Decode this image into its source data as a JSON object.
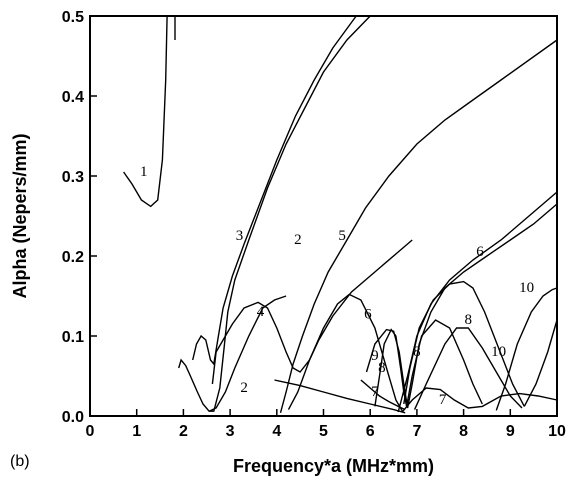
{
  "chart_data": {
    "type": "line",
    "panel_label": "(b)",
    "xlabel": "Frequency*a  (MHz*mm)",
    "ylabel": "Alpha  (Nepers/mm)",
    "xlim": [
      0,
      10
    ],
    "ylim": [
      0,
      0.5
    ],
    "xticks": [
      "0",
      "1",
      "2",
      "3",
      "4",
      "5",
      "6",
      "7",
      "8",
      "9",
      "10"
    ],
    "yticks": [
      "0.0",
      "0.1",
      "0.2",
      "0.3",
      "0.4",
      "0.5"
    ],
    "grid": false,
    "series": [
      {
        "label": "1",
        "label_at": [
          1.15,
          0.3
        ],
        "points": [
          [
            0.72,
            0.305
          ],
          [
            0.9,
            0.29
          ],
          [
            1.1,
            0.27
          ],
          [
            1.3,
            0.262
          ],
          [
            1.45,
            0.27
          ],
          [
            1.55,
            0.32
          ],
          [
            1.62,
            0.42
          ],
          [
            1.65,
            0.5
          ]
        ]
      },
      {
        "label": "1",
        "label_at": [
          1.15,
          0.3
        ],
        "points": [
          [
            1.82,
            0.5
          ],
          [
            1.82,
            0.47
          ]
        ]
      },
      {
        "label": "2",
        "label_at": [
          4.45,
          0.215
        ],
        "points": [
          [
            1.9,
            0.06
          ],
          [
            1.95,
            0.07
          ],
          [
            2.05,
            0.063
          ],
          [
            2.15,
            0.05
          ],
          [
            2.3,
            0.03
          ],
          [
            2.42,
            0.015
          ],
          [
            2.55,
            0.006
          ],
          [
            2.65,
            0.006
          ],
          [
            2.78,
            0.035
          ],
          [
            2.88,
            0.09
          ],
          [
            2.95,
            0.13
          ],
          [
            3.1,
            0.17
          ],
          [
            3.4,
            0.22
          ],
          [
            3.8,
            0.285
          ],
          [
            4.2,
            0.34
          ],
          [
            4.6,
            0.385
          ],
          [
            5.0,
            0.43
          ],
          [
            5.5,
            0.47
          ],
          [
            6.0,
            0.5
          ]
        ]
      },
      {
        "label": "2",
        "label_at": [
          3.3,
          0.03
        ],
        "points": [
          [
            2.55,
            0.006
          ],
          [
            2.7,
            0.01
          ],
          [
            2.9,
            0.03
          ],
          [
            3.1,
            0.06
          ],
          [
            3.4,
            0.1
          ],
          [
            3.7,
            0.135
          ],
          [
            3.95,
            0.145
          ],
          [
            4.2,
            0.15
          ]
        ]
      },
      {
        "label": "3",
        "label_at": [
          3.2,
          0.22
        ],
        "points": [
          [
            2.2,
            0.07
          ],
          [
            2.28,
            0.09
          ],
          [
            2.38,
            0.1
          ],
          [
            2.48,
            0.095
          ],
          [
            2.58,
            0.07
          ],
          [
            2.65,
            0.065
          ],
          [
            2.75,
            0.1
          ],
          [
            2.85,
            0.135
          ],
          [
            3.05,
            0.175
          ],
          [
            3.3,
            0.215
          ],
          [
            3.6,
            0.26
          ],
          [
            4.0,
            0.32
          ],
          [
            4.4,
            0.375
          ],
          [
            4.8,
            0.42
          ],
          [
            5.2,
            0.46
          ],
          [
            5.7,
            0.5
          ]
        ]
      },
      {
        "label": "4",
        "label_at": [
          3.65,
          0.125
        ],
        "points": [
          [
            2.62,
            0.04
          ],
          [
            2.7,
            0.08
          ],
          [
            2.85,
            0.095
          ],
          [
            3.05,
            0.115
          ],
          [
            3.3,
            0.135
          ],
          [
            3.6,
            0.142
          ],
          [
            3.8,
            0.135
          ],
          [
            4.0,
            0.11
          ],
          [
            4.2,
            0.08
          ],
          [
            4.35,
            0.06
          ],
          [
            4.5,
            0.055
          ],
          [
            4.7,
            0.07
          ],
          [
            4.9,
            0.095
          ],
          [
            5.2,
            0.125
          ],
          [
            5.6,
            0.155
          ],
          [
            5.9,
            0.17
          ],
          [
            6.2,
            0.185
          ],
          [
            6.6,
            0.205
          ],
          [
            6.9,
            0.22
          ]
        ]
      },
      {
        "label": "5",
        "label_at": [
          5.4,
          0.22
        ],
        "points": [
          [
            4.08,
            0.004
          ],
          [
            4.2,
            0.03
          ],
          [
            4.35,
            0.065
          ],
          [
            4.55,
            0.1
          ],
          [
            4.8,
            0.14
          ],
          [
            5.1,
            0.18
          ],
          [
            5.5,
            0.22
          ],
          [
            5.9,
            0.26
          ],
          [
            6.4,
            0.3
          ],
          [
            7.0,
            0.34
          ],
          [
            7.6,
            0.37
          ],
          [
            8.2,
            0.395
          ],
          [
            8.8,
            0.42
          ],
          [
            10.0,
            0.47
          ]
        ]
      },
      {
        "label": "6",
        "label_at": [
          5.95,
          0.122
        ],
        "points": [
          [
            4.25,
            0.008
          ],
          [
            4.45,
            0.03
          ],
          [
            4.7,
            0.07
          ],
          [
            5.0,
            0.11
          ],
          [
            5.3,
            0.14
          ],
          [
            5.55,
            0.152
          ],
          [
            5.8,
            0.145
          ],
          [
            6.1,
            0.11
          ],
          [
            6.35,
            0.06
          ],
          [
            6.55,
            0.02
          ],
          [
            6.7,
            0.005
          ]
        ]
      },
      {
        "label": "6",
        "label_at": [
          8.35,
          0.2
        ],
        "points": [
          [
            6.6,
            0.005
          ],
          [
            6.8,
            0.05
          ],
          [
            7.0,
            0.1
          ],
          [
            7.3,
            0.14
          ],
          [
            7.7,
            0.17
          ],
          [
            8.2,
            0.195
          ],
          [
            8.8,
            0.22
          ],
          [
            9.4,
            0.25
          ],
          [
            10.0,
            0.28
          ]
        ]
      },
      {
        "label": "7",
        "label_at": [
          6.1,
          0.025
        ],
        "points": [
          [
            3.95,
            0.045
          ],
          [
            4.5,
            0.038
          ],
          [
            5.0,
            0.03
          ],
          [
            5.5,
            0.022
          ],
          [
            6.0,
            0.015
          ],
          [
            6.5,
            0.008
          ],
          [
            6.75,
            0.004
          ]
        ]
      },
      {
        "label": "7",
        "label_at": [
          7.55,
          0.015
        ],
        "points": [
          [
            6.7,
            0.006
          ],
          [
            6.9,
            0.02
          ],
          [
            7.2,
            0.035
          ],
          [
            7.5,
            0.033
          ],
          [
            7.8,
            0.02
          ],
          [
            8.1,
            0.01
          ],
          [
            8.4,
            0.012
          ],
          [
            8.8,
            0.025
          ],
          [
            9.2,
            0.028
          ],
          [
            9.6,
            0.025
          ],
          [
            10.0,
            0.02
          ]
        ]
      },
      {
        "label": "8",
        "label_at": [
          6.25,
          0.055
        ],
        "points": [
          [
            5.8,
            0.045
          ],
          [
            6.0,
            0.035
          ],
          [
            6.2,
            0.025
          ],
          [
            6.4,
            0.018
          ],
          [
            6.6,
            0.012
          ],
          [
            6.75,
            0.008
          ]
        ]
      },
      {
        "label": "8",
        "label_at": [
          7.0,
          0.075
        ],
        "points": [
          [
            6.1,
            0.012
          ],
          [
            6.2,
            0.05
          ],
          [
            6.3,
            0.09
          ],
          [
            6.45,
            0.108
          ],
          [
            6.55,
            0.1
          ],
          [
            6.65,
            0.06
          ],
          [
            6.72,
            0.03
          ],
          [
            6.78,
            0.012
          ],
          [
            6.9,
            0.05
          ],
          [
            7.1,
            0.1
          ],
          [
            7.4,
            0.12
          ],
          [
            7.7,
            0.11
          ],
          [
            8.0,
            0.07
          ],
          [
            8.2,
            0.04
          ],
          [
            8.4,
            0.015
          ]
        ]
      },
      {
        "label": "8",
        "label_at": [
          8.1,
          0.115
        ],
        "points": [
          [
            6.72,
            0.015
          ],
          [
            6.85,
            0.06
          ],
          [
            7.05,
            0.11
          ],
          [
            7.35,
            0.145
          ],
          [
            7.7,
            0.165
          ],
          [
            8.0,
            0.168
          ],
          [
            8.2,
            0.16
          ],
          [
            8.45,
            0.13
          ],
          [
            8.75,
            0.085
          ],
          [
            9.05,
            0.04
          ],
          [
            9.3,
            0.012
          ]
        ]
      },
      {
        "label": "9",
        "label_at": [
          6.1,
          0.07
        ],
        "points": [
          [
            5.92,
            0.055
          ],
          [
            6.1,
            0.09
          ],
          [
            6.35,
            0.108
          ],
          [
            6.5,
            0.106
          ],
          [
            6.62,
            0.08
          ],
          [
            6.72,
            0.04
          ],
          [
            6.8,
            0.01
          ],
          [
            6.9,
            0.04
          ],
          [
            7.05,
            0.09
          ],
          [
            7.3,
            0.13
          ],
          [
            7.6,
            0.16
          ],
          [
            8.0,
            0.18
          ],
          [
            8.5,
            0.2
          ],
          [
            9.0,
            0.22
          ],
          [
            9.5,
            0.24
          ],
          [
            10.0,
            0.265
          ]
        ]
      },
      {
        "label": "10",
        "label_at": [
          8.75,
          0.075
        ],
        "points": [
          [
            6.95,
            0.008
          ],
          [
            7.2,
            0.04
          ],
          [
            7.6,
            0.09
          ],
          [
            7.85,
            0.11
          ],
          [
            8.1,
            0.11
          ],
          [
            8.4,
            0.085
          ],
          [
            8.7,
            0.055
          ],
          [
            9.0,
            0.025
          ],
          [
            9.25,
            0.01
          ]
        ]
      },
      {
        "label": "10",
        "label_at": [
          9.35,
          0.155
        ],
        "points": [
          [
            8.7,
            0.007
          ],
          [
            8.9,
            0.04
          ],
          [
            9.15,
            0.09
          ],
          [
            9.45,
            0.13
          ],
          [
            9.7,
            0.15
          ],
          [
            9.9,
            0.158
          ],
          [
            10.0,
            0.16
          ]
        ]
      },
      {
        "label": "10",
        "label_at": [
          9.35,
          0.155
        ],
        "points": [
          [
            9.3,
            0.012
          ],
          [
            9.55,
            0.04
          ],
          [
            9.8,
            0.08
          ],
          [
            10.0,
            0.12
          ]
        ]
      }
    ]
  }
}
